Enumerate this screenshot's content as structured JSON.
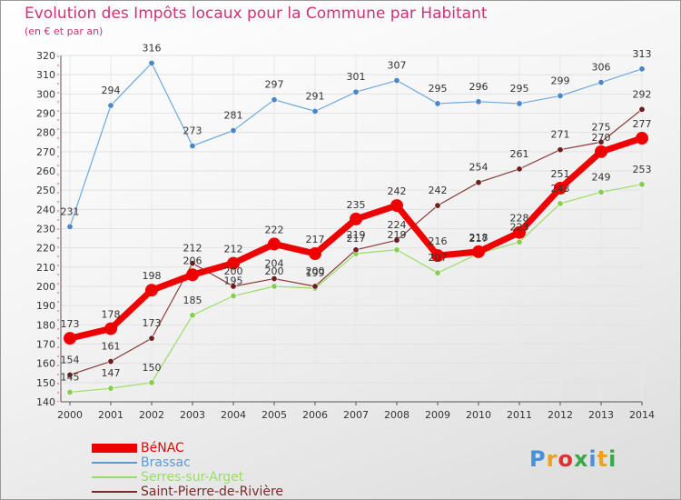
{
  "header": {
    "title": "Evolution des Impôts locaux pour la Commune par Habitant",
    "subtitle": "(en € et par an)"
  },
  "logo": {
    "text": "Proxiti",
    "letters": [
      {
        "char": "P",
        "color": "#4a90d9"
      },
      {
        "char": "r",
        "color": "#f0a020"
      },
      {
        "char": "o",
        "color": "#e03030"
      },
      {
        "char": "x",
        "color": "#3aa84a"
      },
      {
        "char": "i",
        "color": "#4a90d9"
      },
      {
        "char": "t",
        "color": "#f0a020"
      },
      {
        "char": "i",
        "color": "#3aa84a"
      }
    ]
  },
  "chart_data": {
    "type": "line",
    "title": "Evolution des Impôts locaux pour la Commune par Habitant",
    "subtitle": "(en € et par an)",
    "xlabel": "",
    "ylabel": "",
    "x": [
      "2000",
      "2001",
      "2002",
      "2003",
      "2004",
      "2005",
      "2006",
      "2007",
      "2008",
      "2009",
      "2010",
      "2011",
      "2012",
      "2013",
      "2014"
    ],
    "ylim": [
      140,
      320
    ],
    "yticks": [
      140,
      150,
      160,
      170,
      180,
      190,
      200,
      210,
      220,
      230,
      240,
      250,
      260,
      270,
      280,
      290,
      300,
      310,
      320
    ],
    "grid": true,
    "legend_position": "bottom-left",
    "series": [
      {
        "name": "BéNAC",
        "color": "#ee0000",
        "values": [
          173,
          178,
          198,
          206,
          212,
          222,
          217,
          235,
          242,
          216,
          218,
          228,
          251,
          270,
          277
        ]
      },
      {
        "name": "Brassac",
        "color": "#5b9bd5",
        "values": [
          231,
          294,
          316,
          273,
          281,
          297,
          291,
          301,
          307,
          295,
          296,
          295,
          299,
          306,
          313
        ]
      },
      {
        "name": "Serres-sur-Arget",
        "color": "#99dd66",
        "values": [
          145,
          147,
          150,
          185,
          195,
          200,
          199,
          217,
          219,
          207,
          217,
          223,
          243,
          249,
          253
        ]
      },
      {
        "name": "Saint-Pierre-de-Rivière",
        "color": "#7a2a2a",
        "values": [
          154,
          161,
          173,
          212,
          200,
          204,
          200,
          219,
          224,
          242,
          254,
          261,
          271,
          275,
          292
        ]
      }
    ]
  }
}
